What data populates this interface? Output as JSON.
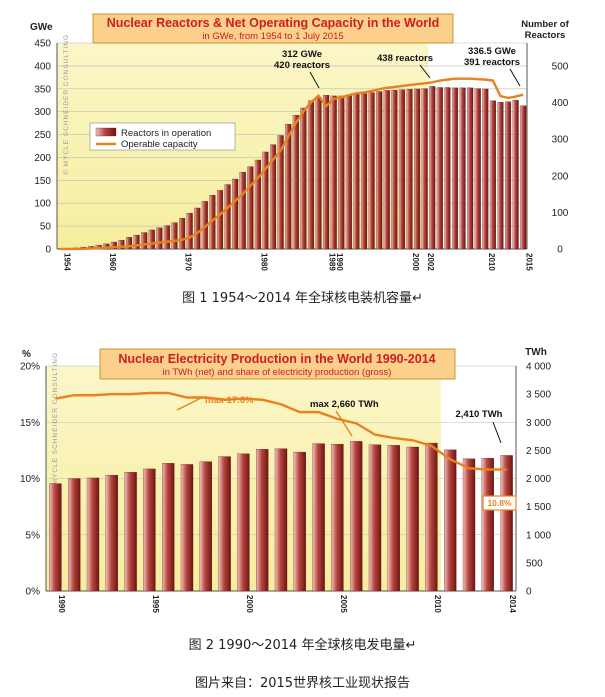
{
  "chart_data": [
    {
      "type": "bar",
      "title": "Nuclear Reactors & Net Operating Capacity in the World",
      "subtitle": "in GWe, from 1954 to 1 July 2015",
      "ylabel_left": "GWe",
      "ylabel_right": "Number of Reactors",
      "watermark": "© MYCLE SCHNEIDER CONSULTING",
      "ylim_left": [
        0,
        450
      ],
      "ylim_right": [
        0,
        562.5
      ],
      "y_ticks_left": [
        "0",
        "50",
        "100",
        "150",
        "200",
        "250",
        "300",
        "350",
        "400",
        "450"
      ],
      "y_ticks_right": [
        "0",
        "100",
        "200",
        "300",
        "400",
        "500"
      ],
      "x_tick_labels": [
        "1954",
        "1960",
        "1970",
        "1980",
        "1989",
        "1990",
        "2000",
        "2002",
        "2010",
        "2015"
      ],
      "x_tick_years": [
        1954,
        1960,
        1970,
        1980,
        1989,
        1990,
        2000,
        2002,
        2010,
        2015
      ],
      "x": [
        1954,
        1955,
        1956,
        1957,
        1958,
        1959,
        1960,
        1961,
        1962,
        1963,
        1964,
        1965,
        1966,
        1967,
        1968,
        1969,
        1970,
        1971,
        1972,
        1973,
        1974,
        1975,
        1976,
        1977,
        1978,
        1979,
        1980,
        1981,
        1982,
        1983,
        1984,
        1985,
        1986,
        1987,
        1988,
        1989,
        1990,
        1991,
        1992,
        1993,
        1994,
        1995,
        1996,
        1997,
        1998,
        1999,
        2000,
        2001,
        2002,
        2003,
        2004,
        2005,
        2006,
        2007,
        2008,
        2009,
        2010,
        2011,
        2012,
        2013,
        2014,
        2015
      ],
      "series": [
        {
          "name": "Reactors in operation",
          "axis": "right",
          "kind": "bar",
          "color": "#a0302c",
          "values": [
            1,
            2,
            3,
            5,
            7,
            10,
            14,
            19,
            24,
            32,
            38,
            45,
            52,
            58,
            64,
            72,
            84,
            98,
            112,
            130,
            147,
            160,
            176,
            191,
            210,
            225,
            243,
            265,
            285,
            310,
            341,
            365,
            385,
            405,
            414,
            420,
            418,
            418,
            421,
            423,
            424,
            427,
            430,
            433,
            434,
            435,
            436,
            437,
            438,
            444,
            441,
            441,
            440,
            440,
            440,
            438,
            437,
            405,
            401,
            402,
            406,
            391
          ]
        },
        {
          "name": "Operable capacity",
          "axis": "left",
          "kind": "line",
          "color": "#e8821e",
          "values": [
            0,
            0.1,
            0.2,
            0.5,
            1,
            2,
            3,
            4,
            5,
            6,
            8,
            10,
            12,
            14,
            16,
            18,
            20,
            25,
            35,
            48,
            62,
            75,
            90,
            105,
            120,
            138,
            155,
            175,
            195,
            215,
            245,
            275,
            300,
            320,
            335,
            312,
            328,
            331,
            336,
            340,
            342,
            345,
            349,
            352,
            354,
            356,
            358,
            360,
            362,
            364,
            368,
            370,
            372,
            372,
            372,
            371,
            370,
            368,
            334,
            330,
            333,
            337
          ]
        }
      ],
      "annotations": [
        "312 GWe",
        "420 reactors",
        "438 reactors",
        "336.5 GWe",
        "391 reactors"
      ]
    },
    {
      "type": "bar",
      "title": "Nuclear Electricity Production in the World 1990-2014",
      "subtitle": "in TWh (net) and share of electricity production (gross)",
      "ylabel_left": "%",
      "ylabel_right": "TWh",
      "watermark": "© MYCLE SCHNEIDER CONSULTING",
      "ylim_left": [
        0,
        20
      ],
      "ylim_right": [
        0,
        4000
      ],
      "y_ticks_left": [
        "0%",
        "5%",
        "10%",
        "15%",
        "20%"
      ],
      "y_ticks_right": [
        "0",
        "500",
        "1 000",
        "1 500",
        "2 000",
        "2 500",
        "3 000",
        "3 500",
        "4 000"
      ],
      "x_tick_labels": [
        "1990",
        "1995",
        "2000",
        "2005",
        "2010",
        "2014"
      ],
      "x_tick_years": [
        1990,
        1995,
        2000,
        2005,
        2010,
        2014
      ],
      "x": [
        1990,
        1991,
        1992,
        1993,
        1994,
        1995,
        1996,
        1997,
        1998,
        1999,
        2000,
        2001,
        2002,
        2003,
        2004,
        2005,
        2006,
        2007,
        2008,
        2009,
        2010,
        2011,
        2012,
        2013,
        2014
      ],
      "series": [
        {
          "name": "Nuclear electricity production (TWh)",
          "axis": "right",
          "kind": "bar",
          "color": "#a0302c",
          "values": [
            1910,
            2000,
            2010,
            2060,
            2110,
            2170,
            2270,
            2250,
            2300,
            2390,
            2440,
            2520,
            2530,
            2470,
            2620,
            2610,
            2660,
            2600,
            2590,
            2560,
            2630,
            2510,
            2350,
            2360,
            2410
          ]
        },
        {
          "name": "Share of electricity production (%)",
          "axis": "left",
          "kind": "line",
          "color": "#e8821e",
          "values": [
            17.1,
            17.4,
            17.4,
            17.5,
            17.5,
            17.6,
            17.6,
            17.2,
            17.2,
            17.0,
            17.1,
            17.0,
            16.6,
            15.9,
            15.9,
            15.3,
            14.9,
            13.9,
            13.6,
            13.4,
            12.9,
            11.7,
            10.9,
            10.8,
            10.8
          ]
        }
      ],
      "annotations": [
        "max 17.6%",
        "max 2,660 TWh",
        "2,410 TWh",
        "10.8%"
      ]
    }
  ],
  "captions": {
    "fig1": "图 1  1954～2014 年全球核电装机容量↵",
    "fig2": "图 2  1990～2014 年全球核电发电量↵",
    "source": "图片来自：2015世界核工业现状报告"
  },
  "legend1": {
    "reactors": "Reactors in operation",
    "capacity": "Operable capacity"
  }
}
